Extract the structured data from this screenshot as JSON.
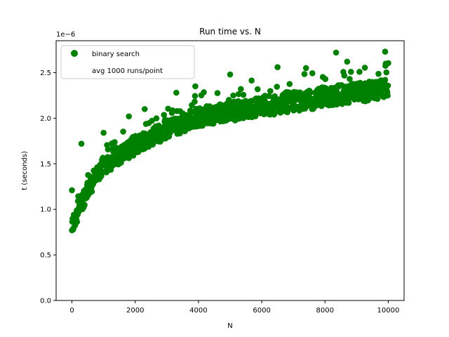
{
  "chart_data": {
    "type": "scatter",
    "title": "Run time vs. N",
    "xlabel": "N",
    "ylabel": "t (seconds)",
    "y_offset_text": "1e−6",
    "y_scale_factor": 1e-06,
    "xlim": [
      -500,
      10500
    ],
    "ylim": [
      0,
      2.85
    ],
    "xticks": [
      0,
      2000,
      4000,
      6000,
      8000,
      10000
    ],
    "xtick_labels": [
      "0",
      "2000",
      "4000",
      "6000",
      "8000",
      "10000"
    ],
    "yticks": [
      0.0,
      0.5,
      1.0,
      1.5,
      2.0,
      2.5
    ],
    "ytick_labels": [
      "0.0",
      "0.5",
      "1.0",
      "1.5",
      "2.0",
      "2.5"
    ],
    "legend_position": "top-left",
    "legend": [
      {
        "label": "binary search",
        "marker": "circle",
        "color": "#008000"
      },
      {
        "label": "avg 1000 runs/point",
        "marker": "none",
        "color": "#ffffff"
      }
    ],
    "series": [
      {
        "name": "binary search",
        "color": "#008000",
        "model": "log",
        "x_range": [
          0,
          10000
        ],
        "x_step": 10,
        "trend_points": [
          {
            "x": 0,
            "y": 0.78
          },
          {
            "x": 200,
            "y": 0.95
          },
          {
            "x": 500,
            "y": 1.2
          },
          {
            "x": 1000,
            "y": 1.45
          },
          {
            "x": 2000,
            "y": 1.68
          },
          {
            "x": 3000,
            "y": 1.85
          },
          {
            "x": 4000,
            "y": 1.98
          },
          {
            "x": 6000,
            "y": 2.1
          },
          {
            "x": 8000,
            "y": 2.2
          },
          {
            "x": 10000,
            "y": 2.3
          }
        ],
        "outliers": [
          {
            "x": 0,
            "y": 1.21
          },
          {
            "x": 300,
            "y": 1.72
          },
          {
            "x": 1000,
            "y": 1.84
          },
          {
            "x": 1800,
            "y": 2.02
          },
          {
            "x": 2300,
            "y": 2.1
          },
          {
            "x": 3300,
            "y": 2.28
          },
          {
            "x": 3900,
            "y": 2.35
          },
          {
            "x": 5000,
            "y": 2.48
          },
          {
            "x": 6500,
            "y": 2.56
          },
          {
            "x": 7400,
            "y": 2.55
          },
          {
            "x": 8350,
            "y": 2.72
          },
          {
            "x": 8700,
            "y": 2.62
          },
          {
            "x": 9900,
            "y": 2.73
          }
        ]
      }
    ]
  }
}
